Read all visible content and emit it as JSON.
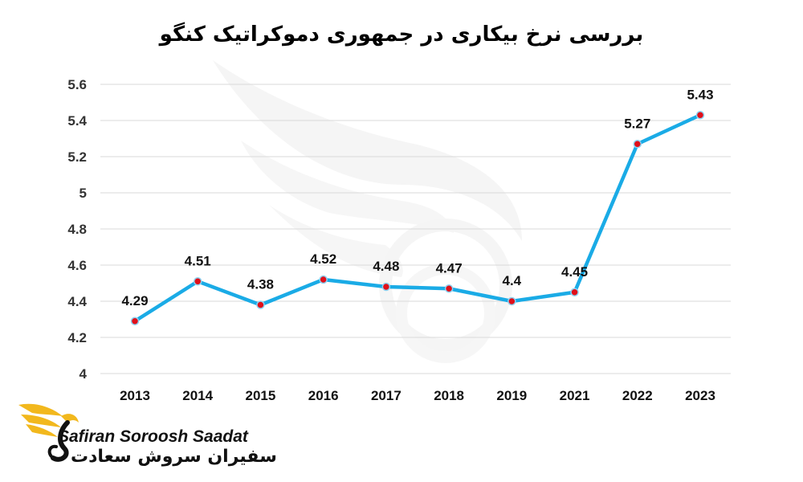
{
  "chart_data": {
    "type": "line",
    "title": "بررسی نرخ بیکاری در جمهوری دموکراتیک کنگو",
    "categories": [
      "2013",
      "2014",
      "2015",
      "2016",
      "2017",
      "2018",
      "2019",
      "2021",
      "2022",
      "2023"
    ],
    "values": [
      4.29,
      4.51,
      4.38,
      4.52,
      4.48,
      4.47,
      4.4,
      4.45,
      5.27,
      5.43
    ],
    "data_labels": [
      "4.29",
      "4.51",
      "4.38",
      "4.52",
      "4.48",
      "4.47",
      "4.4",
      "4.45",
      "5.27",
      "5.43"
    ],
    "y_ticks": [
      "4",
      "4.2",
      "4.4",
      "4.6",
      "4.8",
      "5",
      "5.2",
      "5.4",
      "5.6"
    ],
    "ylim": [
      4,
      5.6
    ],
    "xlabel": "",
    "ylabel": "",
    "grid": true,
    "legend": "none",
    "line_color": "#1aabe6",
    "marker_color": "#e0101a"
  },
  "watermark": {
    "brand_en": "Safiran Soroosh Saadat",
    "brand_fa": "سفیران سروش سعادت"
  }
}
